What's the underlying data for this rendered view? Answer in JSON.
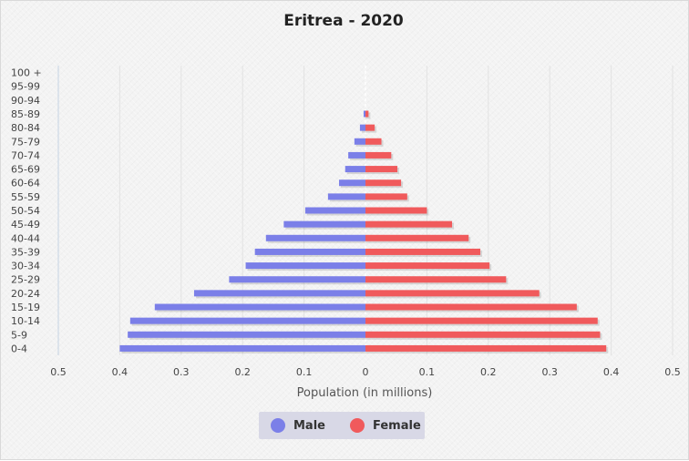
{
  "chart_data": {
    "type": "bar",
    "orientation": "horizontal",
    "title": "Eritrea - 2020",
    "xlabel": "Population (in millions)",
    "ylabel": "",
    "xlim": [
      -0.5,
      0.5
    ],
    "x_tick_labels": [
      "0.5",
      "0.4",
      "0.3",
      "0.2",
      "0.1",
      "0",
      "0.1",
      "0.2",
      "0.3",
      "0.4",
      "0.5"
    ],
    "categories": [
      "100 +",
      "95-99",
      "90-94",
      "85-89",
      "80-84",
      "75-79",
      "70-74",
      "65-69",
      "60-64",
      "55-59",
      "50-54",
      "45-49",
      "40-44",
      "35-39",
      "30-34",
      "25-29",
      "20-24",
      "15-19",
      "10-14",
      "5-9",
      "0-4"
    ],
    "series": [
      {
        "name": "Male",
        "color": "#7b7fe8",
        "values": [
          0.0,
          0.0,
          0.0,
          0.003,
          0.009,
          0.018,
          0.028,
          0.033,
          0.043,
          0.061,
          0.098,
          0.133,
          0.162,
          0.18,
          0.195,
          0.222,
          0.279,
          0.343,
          0.383,
          0.387,
          0.4
        ]
      },
      {
        "name": "Female",
        "color": "#f05a5c",
        "values": [
          0.0,
          0.0,
          0.0,
          0.005,
          0.015,
          0.026,
          0.042,
          0.052,
          0.058,
          0.068,
          0.1,
          0.141,
          0.168,
          0.187,
          0.202,
          0.229,
          0.283,
          0.344,
          0.378,
          0.382,
          0.392
        ]
      }
    ],
    "grid": true,
    "legend_position": "bottom-center"
  }
}
